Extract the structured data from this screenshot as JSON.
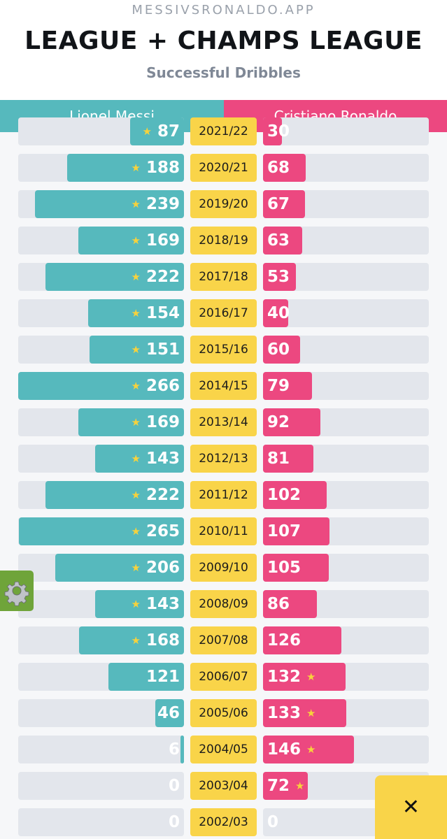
{
  "header": {
    "site": "MESSIVSRONALDO.APP",
    "title": "LEAGUE + CHAMPS LEAGUE",
    "subtitle": "Successful Dribbles"
  },
  "players": {
    "left": "Lionel Messi",
    "right": "Cristiano Ronaldo"
  },
  "colors": {
    "messi": "#56b9bd",
    "ronaldo": "#ec4880",
    "season": "#f9d449",
    "track": "#e3e6ec",
    "star": "#f7d23c"
  },
  "icons": {
    "settings": "gear-icon",
    "close": "close-icon",
    "star": "star-icon"
  },
  "close_label": "✕",
  "star_glyph": "★",
  "chart_data": {
    "type": "bar",
    "title": "Successful Dribbles",
    "max_value": 266,
    "series": [
      {
        "name": "Lionel Messi"
      },
      {
        "name": "Cristiano Ronaldo"
      }
    ],
    "rows": [
      {
        "season": "2021/22",
        "messi": 87,
        "ronaldo": 30,
        "winner": "messi"
      },
      {
        "season": "2020/21",
        "messi": 188,
        "ronaldo": 68,
        "winner": "messi"
      },
      {
        "season": "2019/20",
        "messi": 239,
        "ronaldo": 67,
        "winner": "messi"
      },
      {
        "season": "2018/19",
        "messi": 169,
        "ronaldo": 63,
        "winner": "messi"
      },
      {
        "season": "2017/18",
        "messi": 222,
        "ronaldo": 53,
        "winner": "messi"
      },
      {
        "season": "2016/17",
        "messi": 154,
        "ronaldo": 40,
        "winner": "messi"
      },
      {
        "season": "2015/16",
        "messi": 151,
        "ronaldo": 60,
        "winner": "messi"
      },
      {
        "season": "2014/15",
        "messi": 266,
        "ronaldo": 79,
        "winner": "messi"
      },
      {
        "season": "2013/14",
        "messi": 169,
        "ronaldo": 92,
        "winner": "messi"
      },
      {
        "season": "2012/13",
        "messi": 143,
        "ronaldo": 81,
        "winner": "messi"
      },
      {
        "season": "2011/12",
        "messi": 222,
        "ronaldo": 102,
        "winner": "messi"
      },
      {
        "season": "2010/11",
        "messi": 265,
        "ronaldo": 107,
        "winner": "messi"
      },
      {
        "season": "2009/10",
        "messi": 206,
        "ronaldo": 105,
        "winner": "messi"
      },
      {
        "season": "2008/09",
        "messi": 143,
        "ronaldo": 86,
        "winner": "messi"
      },
      {
        "season": "2007/08",
        "messi": 168,
        "ronaldo": 126,
        "winner": "messi"
      },
      {
        "season": "2006/07",
        "messi": 121,
        "ronaldo": 132,
        "winner": "ronaldo"
      },
      {
        "season": "2005/06",
        "messi": 46,
        "ronaldo": 133,
        "winner": "ronaldo"
      },
      {
        "season": "2004/05",
        "messi": 6,
        "ronaldo": 146,
        "winner": "ronaldo"
      },
      {
        "season": "2003/04",
        "messi": 0,
        "ronaldo": 72,
        "winner": "ronaldo"
      },
      {
        "season": "2002/03",
        "messi": 0,
        "ronaldo": 0,
        "winner": "none"
      }
    ]
  }
}
